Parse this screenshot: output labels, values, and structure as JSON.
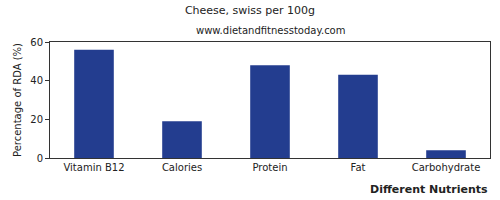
{
  "chart_data": {
    "type": "bar",
    "title": "Cheese, swiss per 100g",
    "subtitle": "www.dietandfitnesstoday.com",
    "xlabel": "Different Nutrients",
    "ylabel": "Percentage of RDA (%)",
    "categories": [
      "Vitamin B12",
      "Calories",
      "Protein",
      "Fat",
      "Carbohydrate"
    ],
    "values": [
      56,
      19,
      48,
      43,
      4
    ],
    "color": "#233d8f",
    "ylim": [
      0,
      60
    ],
    "yticks": [
      0,
      20,
      40,
      60
    ],
    "grid": false
  }
}
